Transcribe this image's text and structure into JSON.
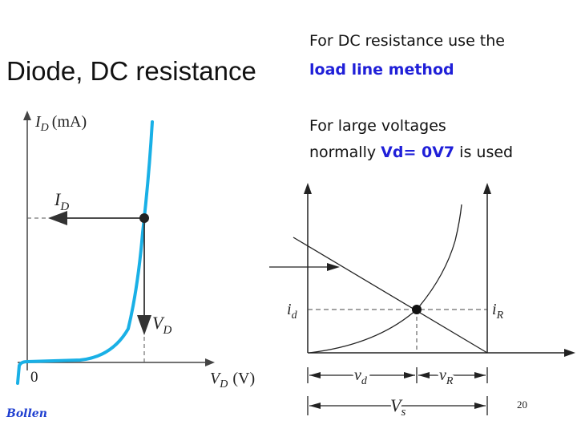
{
  "slide": {
    "title": "Diode, DC resistance",
    "note_line1": "For DC resistance use the",
    "note_line2_highlight": "load line method",
    "note_line3": "For large voltages",
    "note_line4_pre": "normally ",
    "note_line4_highlight": "Vd= 0V7",
    "note_line4_post": " is used",
    "page_number": "20",
    "author": "Bollen"
  },
  "diode_curve": {
    "y_axis_main": "I",
    "y_axis_sub": "D",
    "y_axis_unit": "(mA)",
    "x_axis_main": "V",
    "x_axis_sub": "D",
    "x_axis_unit": "(V)",
    "origin_label": "0",
    "current_label_main": "I",
    "current_label_sub": "D",
    "voltage_label_main": "V",
    "voltage_label_sub": "D"
  },
  "load_line": {
    "id_main": "i",
    "id_sub": "d",
    "ir_main": "i",
    "ir_sub": "R",
    "vd_main": "v",
    "vd_sub": "d",
    "vr_main": "v",
    "vr_sub": "R",
    "vs_main": "V",
    "vs_sub": "s"
  },
  "colors": {
    "curve": "#19b0e6",
    "highlight_text": "#1f1fd8",
    "author": "#1f3fd0"
  }
}
